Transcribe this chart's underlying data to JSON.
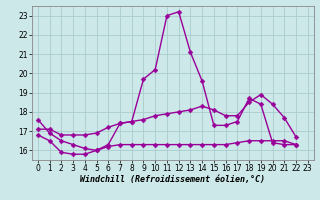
{
  "title": "",
  "xlabel": "Windchill (Refroidissement éolien,°C)",
  "ylabel": "",
  "background_color": "#cce8e8",
  "line_color": "#990099",
  "marker": "D",
  "markersize": 2.5,
  "linewidth": 1.0,
  "xlim": [
    -0.5,
    23.5
  ],
  "ylim": [
    15.5,
    23.5
  ],
  "yticks": [
    16,
    17,
    18,
    19,
    20,
    21,
    22,
    23
  ],
  "xticks": [
    0,
    1,
    2,
    3,
    4,
    5,
    6,
    7,
    8,
    9,
    10,
    11,
    12,
    13,
    14,
    15,
    16,
    17,
    18,
    19,
    20,
    21,
    22,
    23
  ],
  "grid_color": "#aacccc",
  "series": [
    {
      "x": [
        0,
        1,
        2,
        3,
        4,
        5,
        6,
        7,
        8,
        9,
        10,
        11,
        12,
        13,
        14,
        15,
        16,
        17,
        18,
        19,
        20,
        21,
        22,
        23
      ],
      "y": [
        17.6,
        16.9,
        16.5,
        16.3,
        16.1,
        16.0,
        16.3,
        17.4,
        17.5,
        19.7,
        20.2,
        23.0,
        23.2,
        21.1,
        19.6,
        17.3,
        17.3,
        17.5,
        18.7,
        18.4,
        16.4,
        16.3,
        16.3,
        null
      ]
    },
    {
      "x": [
        0,
        1,
        2,
        3,
        4,
        5,
        6,
        7,
        8,
        9,
        10,
        11,
        12,
        13,
        14,
        15,
        16,
        17,
        18,
        19,
        20,
        21,
        22,
        23
      ],
      "y": [
        17.1,
        17.1,
        16.8,
        16.8,
        16.8,
        16.9,
        17.2,
        17.4,
        17.5,
        17.6,
        17.8,
        17.9,
        18.0,
        18.1,
        18.3,
        18.1,
        17.8,
        17.8,
        18.5,
        18.9,
        18.4,
        17.7,
        16.7,
        null
      ]
    },
    {
      "x": [
        0,
        1,
        2,
        3,
        4,
        5,
        6,
        7,
        8,
        9,
        10,
        11,
        12,
        13,
        14,
        15,
        16,
        17,
        18,
        19,
        20,
        21,
        22,
        23
      ],
      "y": [
        16.8,
        16.5,
        15.9,
        15.8,
        15.8,
        16.0,
        16.2,
        16.3,
        16.3,
        16.3,
        16.3,
        16.3,
        16.3,
        16.3,
        16.3,
        16.3,
        16.3,
        16.4,
        16.5,
        16.5,
        16.5,
        16.5,
        16.3,
        null
      ]
    }
  ]
}
